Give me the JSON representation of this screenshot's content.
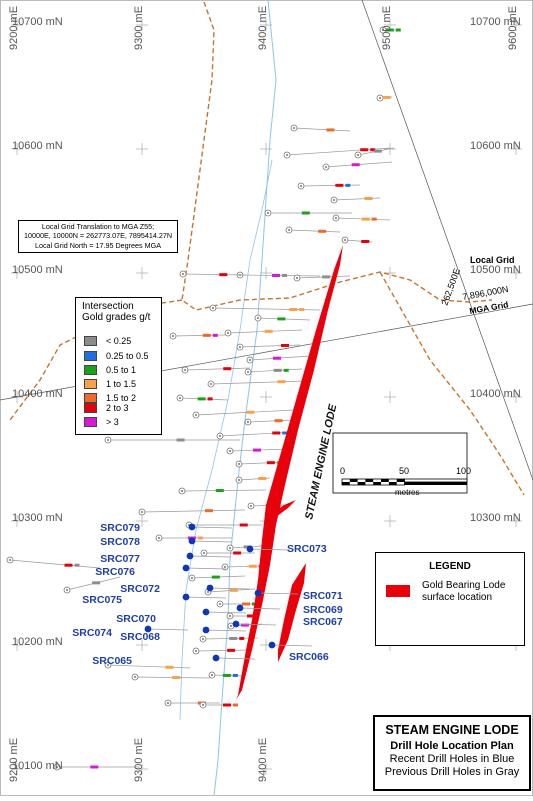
{
  "grid_labels": {
    "east_9200": "9200 mE",
    "east_9300": "9300 mE",
    "east_9400": "9400 mE",
    "east_9500": "9500 mE",
    "east_9600": "9600 mE",
    "north_10700": "10700 mN",
    "north_10600": "10600 mN",
    "north_10500": "10500 mN",
    "north_10400": "10400 mN",
    "north_10300": "10300 mN",
    "north_10200": "10200 mN",
    "north_10100": "10100 mN"
  },
  "grid_note": {
    "line1": "Local Grid Translation to MGA Z55;",
    "line2": "10000E, 10000N = 262773.07E, 7895414.27N",
    "line3": "Local Grid North = 17.95 Degrees MGA"
  },
  "labels": {
    "local_grid": "Local Grid",
    "mga_grid": "MGA Grid",
    "mga_east": "262,500E",
    "mga_north": "7,896,000N",
    "lode_name": "STEAM ENGINE LODE"
  },
  "intersection_legend": {
    "title_line1": "Intersection",
    "title_line2": "Gold grades g/t",
    "items": [
      {
        "label": "< 0.25",
        "color": "#8c8c8c"
      },
      {
        "label": "0.25 to 0.5",
        "color": "#1f6fe0"
      },
      {
        "label": "0.5 to 1",
        "color": "#1aa31a"
      },
      {
        "label": "1 to 1.5",
        "color": "#f7a24a"
      },
      {
        "label": "1.5 to 2",
        "color": "#ef6a2a"
      },
      {
        "label": "2 to 3",
        "color": "#e3000f"
      },
      {
        "label": "> 3",
        "color": "#d41ad4"
      }
    ]
  },
  "scale_bar": {
    "tick0": "0",
    "tick50": "50",
    "tick100": "100",
    "unit": "metres"
  },
  "lode_legend": {
    "title": "LEGEND",
    "line1": "Gold Bearing Lode",
    "line2": "surface location",
    "color": "#e8000b"
  },
  "drill_holes": [
    {
      "id": "SRC079"
    },
    {
      "id": "SRC078"
    },
    {
      "id": "SRC077"
    },
    {
      "id": "SRC076"
    },
    {
      "id": "SRC073"
    },
    {
      "id": "SRC072"
    },
    {
      "id": "SRC075"
    },
    {
      "id": "SRC071"
    },
    {
      "id": "SRC069"
    },
    {
      "id": "SRC067"
    },
    {
      "id": "SRC070"
    },
    {
      "id": "SRC074"
    },
    {
      "id": "SRC068"
    },
    {
      "id": "SRC066"
    },
    {
      "id": "SRC065"
    }
  ],
  "title_block": {
    "title": "STEAM ENGINE LODE",
    "subtitle": "Drill Hole Location Plan",
    "line3": "Recent Drill Holes in Blue",
    "line4": "Previous Drill Holes in Gray"
  },
  "colors": {
    "new_hole": "#1136b5",
    "old_hole": "#8a8a8a",
    "lode": "#e8000b",
    "road": "#c07028",
    "creek": "#7fb8e6"
  }
}
